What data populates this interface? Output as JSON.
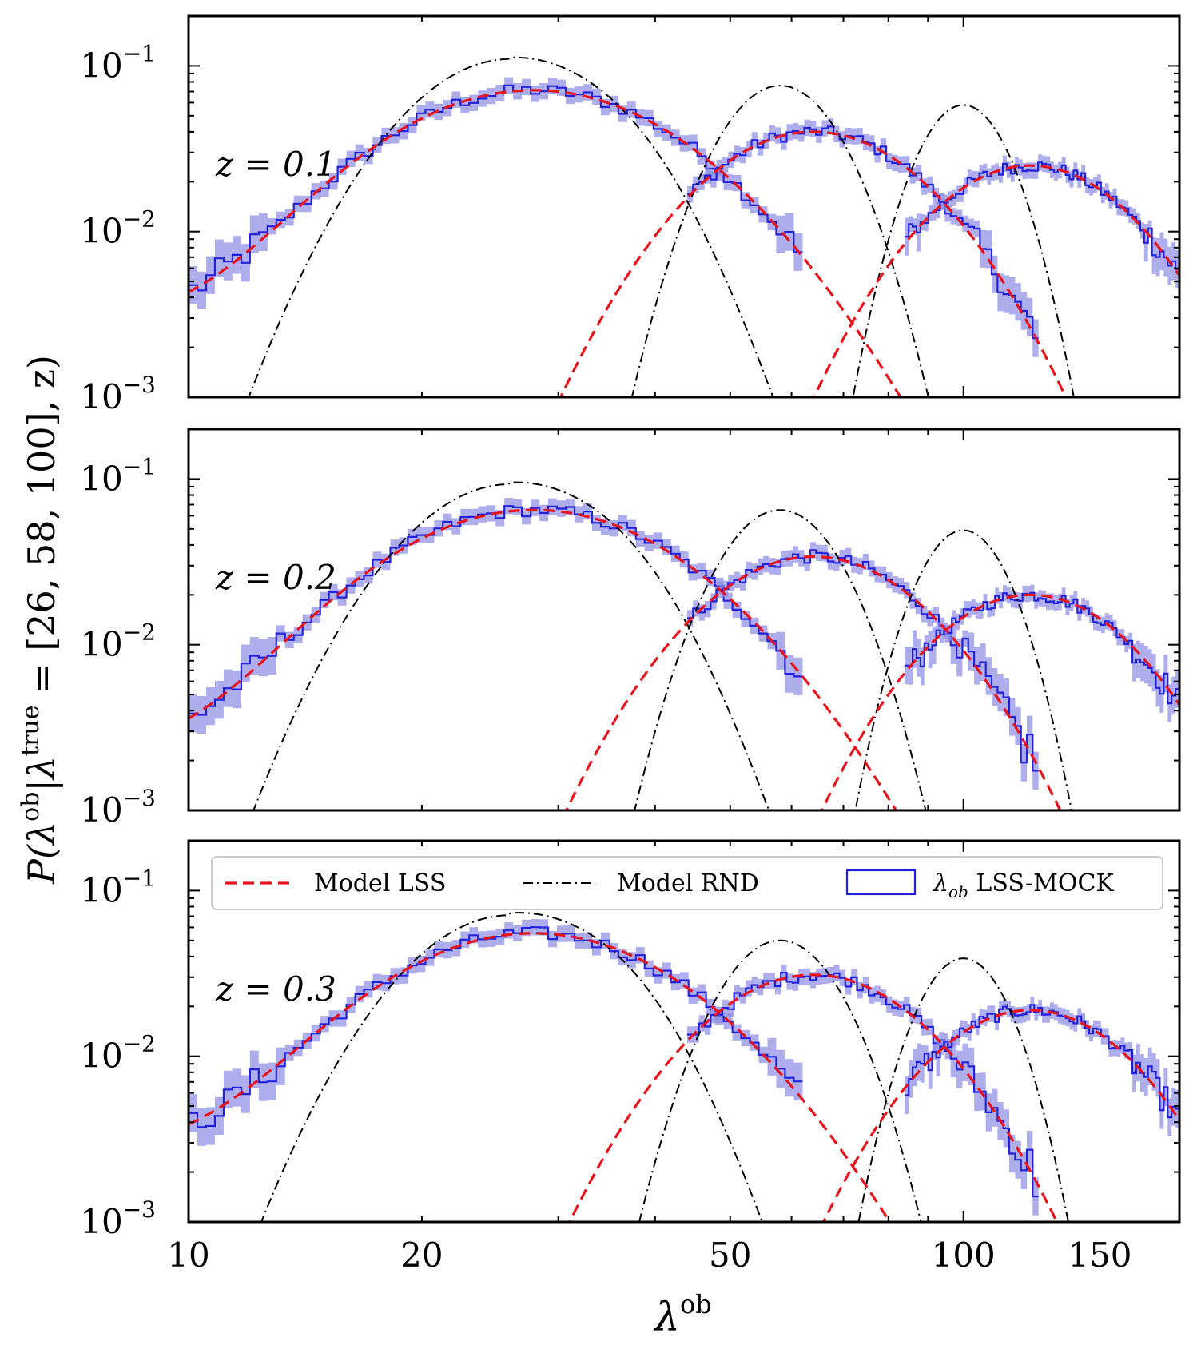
{
  "chart_data": {
    "type": "line",
    "xscale": "log",
    "yscale": "log",
    "xlim": [
      10,
      190
    ],
    "ylim": [
      0.001,
      0.2
    ],
    "ylabel": "P(λ^ob | λ^true = [26, 58, 100], z)",
    "xlabel": "λ^ob",
    "xticks": [
      10,
      20,
      50,
      100,
      150
    ],
    "yticks": [
      "10^{-1}",
      "10^{-2}",
      "10^{-3}"
    ],
    "true_richness": [
      26,
      58,
      100
    ],
    "legend": {
      "location": "top",
      "entries": [
        "Model LSS",
        "Model RND",
        "λ_ob LSS-MOCK"
      ]
    },
    "panels": [
      {
        "label": "z = 0.1",
        "floor": 0.0029,
        "components": [
          {
            "lambda_true": 26,
            "lss_peak_x": 28,
            "lss_peak_y": 0.07,
            "rnd_peak_x": 26,
            "rnd_peak_y": 0.11
          },
          {
            "lambda_true": 58,
            "lss_peak_x": 64,
            "lss_peak_y": 0.04,
            "rnd_peak_x": 58,
            "rnd_peak_y": 0.076
          },
          {
            "lambda_true": 100,
            "lss_peak_x": 122,
            "lss_peak_y": 0.025,
            "rnd_peak_x": 100,
            "rnd_peak_y": 0.058
          }
        ]
      },
      {
        "label": "z = 0.2",
        "floor": 0.0023,
        "components": [
          {
            "lambda_true": 26,
            "lss_peak_x": 28,
            "lss_peak_y": 0.064,
            "rnd_peak_x": 26,
            "rnd_peak_y": 0.093
          },
          {
            "lambda_true": 58,
            "lss_peak_x": 64,
            "lss_peak_y": 0.034,
            "rnd_peak_x": 58,
            "rnd_peak_y": 0.065
          },
          {
            "lambda_true": 100,
            "lss_peak_x": 122,
            "lss_peak_y": 0.02,
            "rnd_peak_x": 100,
            "rnd_peak_y": 0.049
          }
        ]
      },
      {
        "label": "z = 0.3",
        "floor": 0.0028,
        "components": [
          {
            "lambda_true": 26,
            "lss_peak_x": 28,
            "lss_peak_y": 0.054,
            "rnd_peak_x": 26,
            "rnd_peak_y": 0.071
          },
          {
            "lambda_true": 58,
            "lss_peak_x": 64,
            "lss_peak_y": 0.031,
            "rnd_peak_x": 58,
            "rnd_peak_y": 0.05
          },
          {
            "lambda_true": 100,
            "lss_peak_x": 122,
            "lss_peak_y": 0.019,
            "rnd_peak_x": 100,
            "rnd_peak_y": 0.039
          }
        ]
      }
    ]
  },
  "colors": {
    "model_lss": "#e8141c",
    "model_rnd": "#000000",
    "mock_line": "#2222dd",
    "mock_band": "#8b8be6"
  },
  "labels": {
    "panel_z": [
      "z = 0.1",
      "z = 0.2",
      "z = 0.3"
    ],
    "xtick_labels": [
      "10",
      "20",
      "50",
      "100",
      "150"
    ],
    "legend_model_lss": "Model LSS",
    "legend_model_rnd": "Model RND",
    "legend_mock": "LSS-MOCK"
  }
}
